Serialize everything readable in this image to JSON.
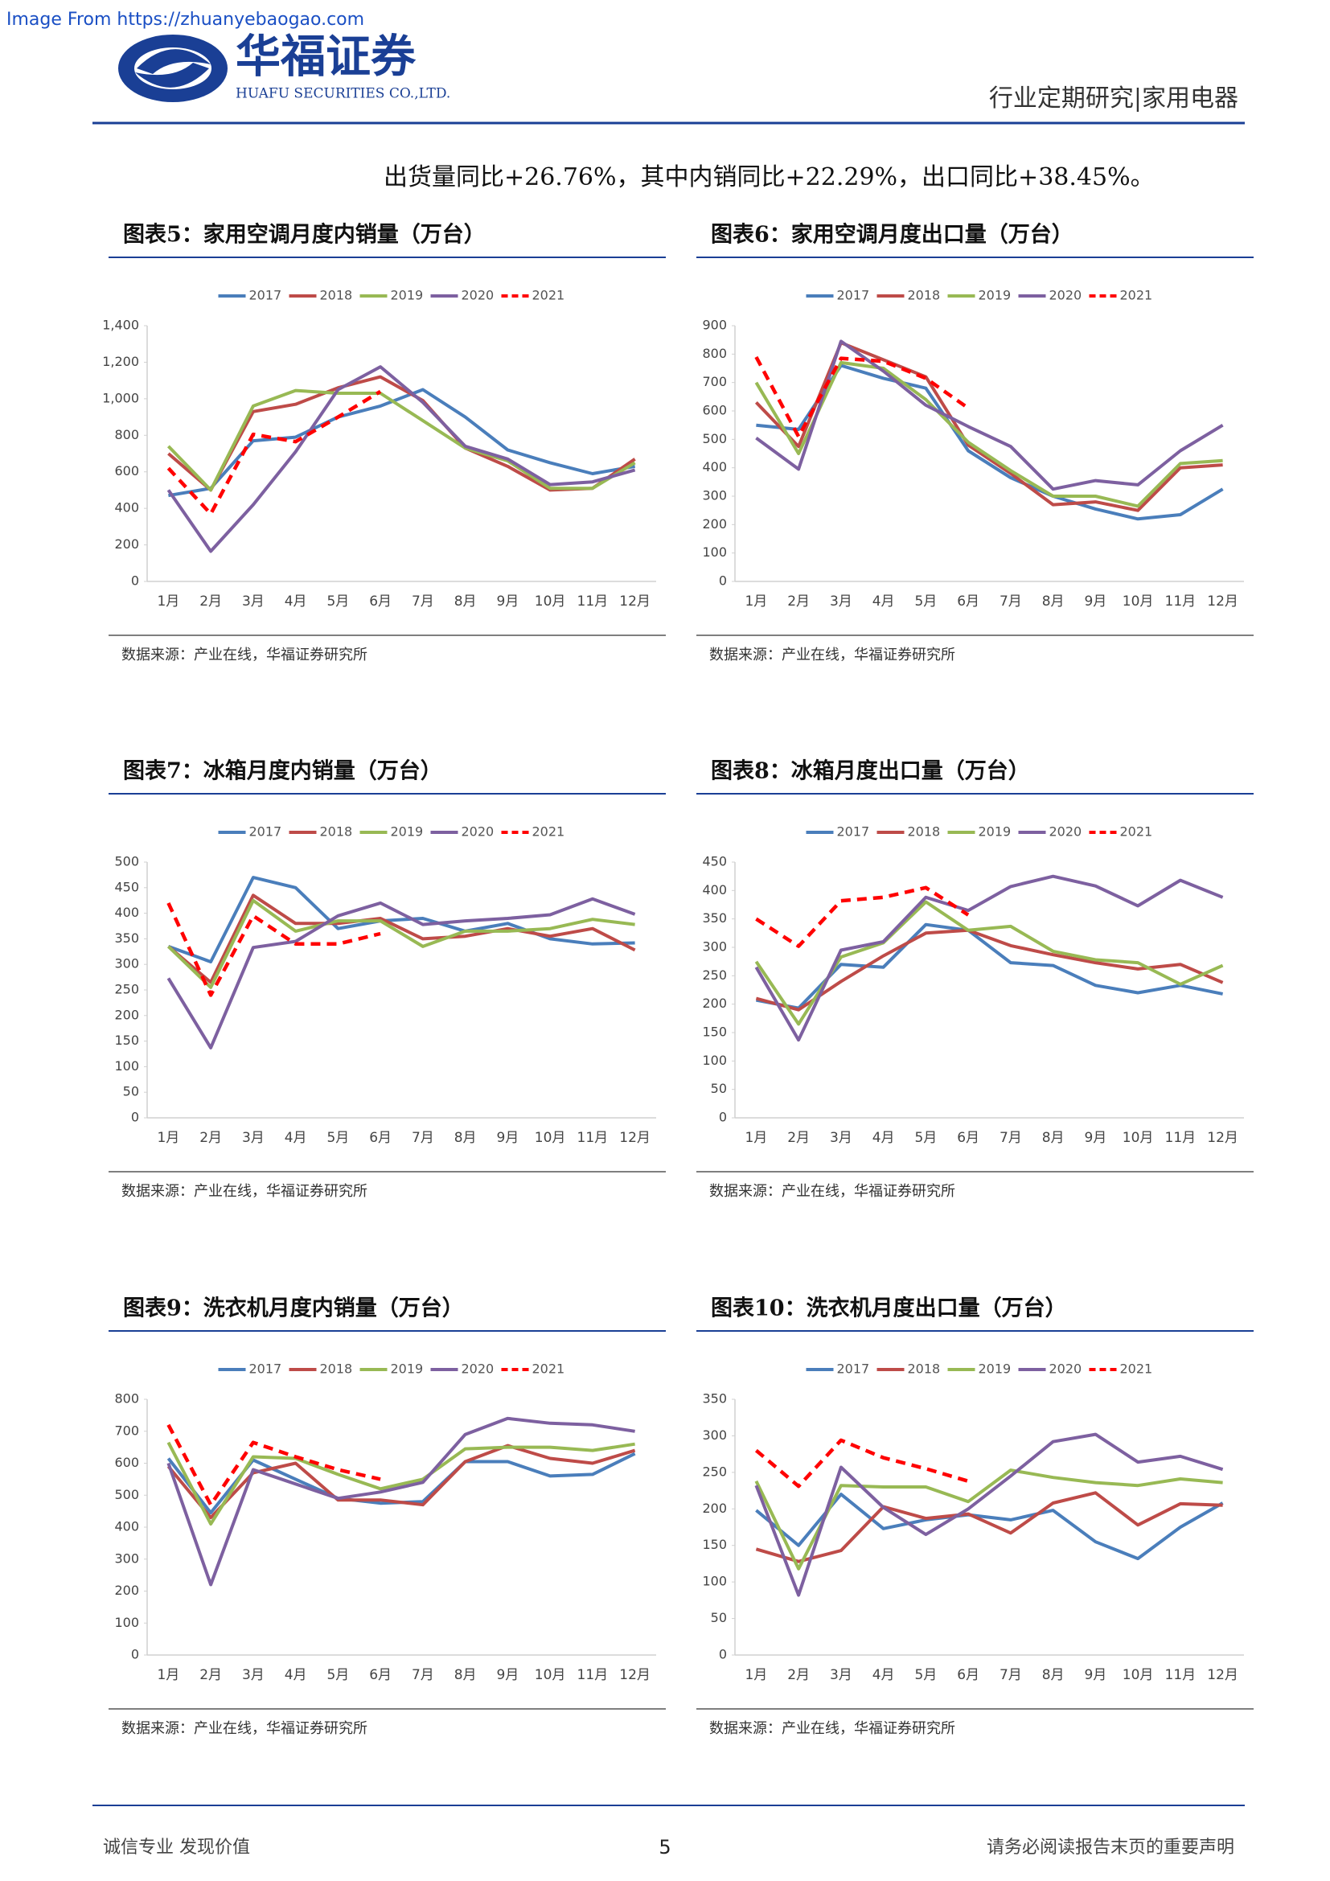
{
  "watermark": "Image From https://zhuanyebaogao.com",
  "header": {
    "company": "华福证券",
    "company_en": "HUAFU SECURITIES CO.,LTD.",
    "section": "行业定期研究|家用电器"
  },
  "intro": "出货量同比+26.76%，其中内销同比+22.29%，出口同比+38.45%。",
  "footer": {
    "left": "诚信专业  发现价值",
    "page": "5",
    "right": "请务必阅读报告末页的重要声明"
  },
  "chart_data": [
    {
      "type": "line",
      "title": "图表5：家用空调月度内销量（万台）",
      "source": "数据来源：产业在线，华福证券研究所",
      "legend": "top",
      "grid": false,
      "categories": [
        "1月",
        "2月",
        "3月",
        "4月",
        "5月",
        "6月",
        "7月",
        "8月",
        "9月",
        "10月",
        "11月",
        "12月"
      ],
      "ylim": [
        0,
        1400
      ],
      "yticks": [
        0,
        200,
        400,
        600,
        800,
        {
          "value": 1000,
          "label": "1,000"
        },
        {
          "value": 1200,
          "label": "1,200"
        },
        {
          "value": 1400,
          "label": "1,400"
        }
      ],
      "series": [
        {
          "name": "2017",
          "color": "#4a7ebb",
          "values": [
            470,
            510,
            770,
            790,
            900,
            960,
            1050,
            900,
            720,
            650,
            590,
            630
          ]
        },
        {
          "name": "2018",
          "color": "#be4b48",
          "values": [
            700,
            500,
            930,
            970,
            1060,
            1120,
            990,
            730,
            630,
            500,
            510,
            670
          ]
        },
        {
          "name": "2019",
          "color": "#98b954",
          "values": [
            740,
            500,
            960,
            1045,
            1030,
            1030,
            880,
            730,
            660,
            510,
            510,
            650
          ]
        },
        {
          "name": "2020",
          "color": "#7d60a0",
          "values": [
            500,
            165,
            420,
            710,
            1050,
            1175,
            980,
            740,
            670,
            530,
            545,
            610
          ]
        },
        {
          "name": "2021",
          "color": "#ff0000",
          "dashed": true,
          "values": [
            620,
            370,
            805,
            765,
            900,
            1040,
            null,
            null,
            null,
            null,
            null,
            null
          ]
        }
      ]
    },
    {
      "type": "line",
      "title": "图表6：家用空调月度出口量（万台）",
      "source": "数据来源：产业在线，华福证券研究所",
      "legend": "top",
      "grid": false,
      "categories": [
        "1月",
        "2月",
        "3月",
        "4月",
        "5月",
        "6月",
        "7月",
        "8月",
        "9月",
        "10月",
        "11月",
        "12月"
      ],
      "ylim": [
        0,
        900
      ],
      "yticks": [
        0,
        100,
        200,
        300,
        400,
        500,
        600,
        700,
        800,
        900
      ],
      "series": [
        {
          "name": "2017",
          "color": "#4a7ebb",
          "values": [
            550,
            535,
            760,
            715,
            680,
            460,
            365,
            300,
            255,
            220,
            235,
            325
          ]
        },
        {
          "name": "2018",
          "color": "#be4b48",
          "values": [
            630,
            475,
            840,
            780,
            720,
            480,
            380,
            270,
            280,
            250,
            400,
            410
          ]
        },
        {
          "name": "2019",
          "color": "#98b954",
          "values": [
            700,
            450,
            770,
            750,
            640,
            490,
            390,
            300,
            300,
            265,
            415,
            425
          ]
        },
        {
          "name": "2020",
          "color": "#7d60a0",
          "values": [
            505,
            395,
            845,
            740,
            620,
            545,
            475,
            325,
            355,
            340,
            460,
            550
          ]
        },
        {
          "name": "2021",
          "color": "#ff0000",
          "dashed": true,
          "values": [
            790,
            510,
            785,
            775,
            715,
            610,
            null,
            null,
            null,
            null,
            null,
            null
          ]
        }
      ]
    },
    {
      "type": "line",
      "title": "图表7：冰箱月度内销量（万台）",
      "source": "数据来源：产业在线，华福证券研究所",
      "legend": "top",
      "grid": false,
      "categories": [
        "1月",
        "2月",
        "3月",
        "4月",
        "5月",
        "6月",
        "7月",
        "8月",
        "9月",
        "10月",
        "11月",
        "12月"
      ],
      "ylim": [
        0,
        500
      ],
      "yticks": [
        0,
        50,
        100,
        150,
        200,
        250,
        300,
        350,
        400,
        450,
        500
      ],
      "series": [
        {
          "name": "2017",
          "color": "#4a7ebb",
          "values": [
            335,
            305,
            470,
            450,
            370,
            385,
            390,
            365,
            380,
            350,
            340,
            342
          ]
        },
        {
          "name": "2018",
          "color": "#be4b48",
          "values": [
            335,
            265,
            435,
            380,
            380,
            390,
            350,
            355,
            370,
            355,
            370,
            328
          ]
        },
        {
          "name": "2019",
          "color": "#98b954",
          "values": [
            335,
            255,
            425,
            365,
            385,
            385,
            335,
            365,
            365,
            370,
            388,
            378
          ]
        },
        {
          "name": "2020",
          "color": "#7d60a0",
          "values": [
            273,
            137,
            333,
            345,
            395,
            420,
            378,
            385,
            390,
            397,
            428,
            398
          ]
        },
        {
          "name": "2021",
          "color": "#ff0000",
          "dashed": true,
          "values": [
            420,
            240,
            395,
            340,
            340,
            360,
            null,
            null,
            null,
            null,
            null,
            null
          ]
        }
      ]
    },
    {
      "type": "line",
      "title": "图表8：冰箱月度出口量（万台）",
      "source": "数据来源：产业在线，华福证券研究所",
      "legend": "top",
      "grid": false,
      "categories": [
        "1月",
        "2月",
        "3月",
        "4月",
        "5月",
        "6月",
        "7月",
        "8月",
        "9月",
        "10月",
        "11月",
        "12月"
      ],
      "ylim": [
        0,
        450
      ],
      "yticks": [
        0,
        50,
        100,
        150,
        200,
        250,
        300,
        350,
        400,
        450
      ],
      "series": [
        {
          "name": "2017",
          "color": "#4a7ebb",
          "values": [
            207,
            193,
            270,
            265,
            340,
            330,
            273,
            268,
            233,
            220,
            233,
            218
          ]
        },
        {
          "name": "2018",
          "color": "#be4b48",
          "values": [
            210,
            190,
            240,
            285,
            325,
            330,
            303,
            287,
            273,
            262,
            270,
            238
          ]
        },
        {
          "name": "2019",
          "color": "#98b954",
          "values": [
            275,
            165,
            283,
            308,
            380,
            330,
            337,
            293,
            278,
            273,
            235,
            268
          ]
        },
        {
          "name": "2020",
          "color": "#7d60a0",
          "values": [
            265,
            137,
            295,
            310,
            388,
            365,
            407,
            425,
            408,
            373,
            418,
            388
          ]
        },
        {
          "name": "2021",
          "color": "#ff0000",
          "dashed": true,
          "values": [
            350,
            302,
            382,
            388,
            405,
            357,
            null,
            null,
            null,
            null,
            null,
            null
          ]
        }
      ]
    },
    {
      "type": "line",
      "title": "图表9：洗衣机月度内销量（万台）",
      "source": "数据来源：产业在线，华福证券研究所",
      "legend": "top",
      "grid": false,
      "categories": [
        "1月",
        "2月",
        "3月",
        "4月",
        "5月",
        "6月",
        "7月",
        "8月",
        "9月",
        "10月",
        "11月",
        "12月"
      ],
      "ylim": [
        0,
        800
      ],
      "yticks": [
        0,
        100,
        200,
        300,
        400,
        500,
        600,
        700,
        800
      ],
      "series": [
        {
          "name": "2017",
          "color": "#4a7ebb",
          "values": [
            615,
            445,
            610,
            550,
            490,
            475,
            480,
            605,
            605,
            560,
            565,
            630
          ]
        },
        {
          "name": "2018",
          "color": "#be4b48",
          "values": [
            590,
            430,
            570,
            600,
            485,
            485,
            470,
            605,
            655,
            615,
            600,
            640
          ]
        },
        {
          "name": "2019",
          "color": "#98b954",
          "values": [
            665,
            410,
            620,
            615,
            565,
            520,
            550,
            645,
            650,
            650,
            640,
            660
          ]
        },
        {
          "name": "2020",
          "color": "#7d60a0",
          "values": [
            600,
            220,
            580,
            535,
            490,
            510,
            540,
            690,
            740,
            725,
            720,
            700
          ]
        },
        {
          "name": "2021",
          "color": "#ff0000",
          "dashed": true,
          "values": [
            720,
            470,
            665,
            620,
            580,
            550,
            null,
            null,
            null,
            null,
            null,
            null
          ]
        }
      ]
    },
    {
      "type": "line",
      "title": "图表10：洗衣机月度出口量（万台）",
      "source": "数据来源：产业在线，华福证券研究所",
      "legend": "top",
      "grid": false,
      "categories": [
        "1月",
        "2月",
        "3月",
        "4月",
        "5月",
        "6月",
        "7月",
        "8月",
        "9月",
        "10月",
        "11月",
        "12月"
      ],
      "ylim": [
        0,
        350
      ],
      "yticks": [
        0,
        50,
        100,
        150,
        200,
        250,
        300,
        350
      ],
      "series": [
        {
          "name": "2017",
          "color": "#4a7ebb",
          "values": [
            198,
            150,
            220,
            173,
            185,
            192,
            185,
            198,
            155,
            132,
            175,
            208
          ]
        },
        {
          "name": "2018",
          "color": "#be4b48",
          "values": [
            145,
            128,
            143,
            203,
            187,
            193,
            167,
            208,
            222,
            178,
            207,
            205
          ]
        },
        {
          "name": "2019",
          "color": "#98b954",
          "values": [
            238,
            118,
            232,
            230,
            230,
            210,
            253,
            243,
            236,
            232,
            241,
            236
          ]
        },
        {
          "name": "2020",
          "color": "#7d60a0",
          "values": [
            232,
            82,
            257,
            202,
            165,
            200,
            245,
            292,
            302,
            264,
            272,
            254
          ]
        },
        {
          "name": "2021",
          "color": "#ff0000",
          "dashed": true,
          "values": [
            280,
            231,
            294,
            270,
            255,
            238,
            null,
            null,
            null,
            null,
            null,
            null
          ]
        }
      ]
    }
  ]
}
